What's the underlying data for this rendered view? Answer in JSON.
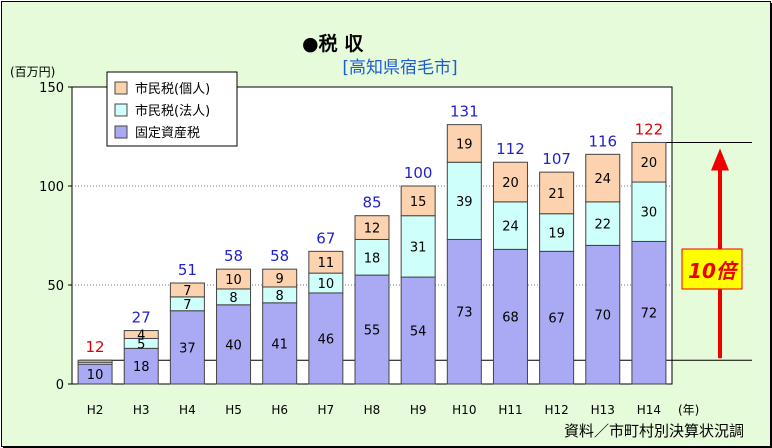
{
  "chart_data": {
    "type": "bar",
    "stacked": true,
    "title": "●税 収",
    "subtitle": "[高知県宿毛市]",
    "ylabel": "(百万円)",
    "xlabel": "(年)",
    "source": "資料／市町村別決算状況調",
    "ylim": [
      0,
      150
    ],
    "yticks": [
      0,
      50,
      100,
      150
    ],
    "grid": true,
    "legend_position": "top-left",
    "categories": [
      "H2",
      "H3",
      "H4",
      "H5",
      "H6",
      "H7",
      "H8",
      "H9",
      "H10",
      "H11",
      "H12",
      "H13",
      "H14"
    ],
    "series": [
      {
        "name": "固定資産税",
        "values": [
          10,
          18,
          37,
          40,
          41,
          46,
          55,
          54,
          73,
          68,
          67,
          70,
          72
        ],
        "color": "#aaaaf4"
      },
      {
        "name": "市民税(法人)",
        "values": [
          1,
          5,
          7,
          8,
          8,
          10,
          18,
          31,
          39,
          24,
          19,
          22,
          30
        ],
        "color": "#cffffa"
      },
      {
        "name": "市民税(個人)",
        "values": [
          1,
          4,
          7,
          10,
          9,
          11,
          12,
          15,
          19,
          20,
          21,
          24,
          20
        ],
        "color": "#fcd3ae"
      }
    ],
    "segment_labels": [
      [
        "10",
        "18",
        "37",
        "40",
        "41",
        "46",
        "55",
        "54",
        "73",
        "68",
        "67",
        "70",
        "72"
      ],
      [
        "",
        "5",
        "7",
        "8",
        "8",
        "10",
        "18",
        "31",
        "39",
        "24",
        "19",
        "22",
        "30"
      ],
      [
        "",
        "4",
        "7",
        "10",
        "9",
        "11",
        "12",
        "15",
        "19",
        "20",
        "21",
        "24",
        "20"
      ]
    ],
    "totals": [
      12,
      27,
      51,
      58,
      58,
      67,
      85,
      100,
      131,
      112,
      107,
      116,
      122
    ],
    "total_colors": [
      "#dd0000",
      "#2222cc",
      "#2222cc",
      "#2222cc",
      "#2222cc",
      "#2222cc",
      "#2222cc",
      "#2222cc",
      "#2222cc",
      "#2222cc",
      "#2222cc",
      "#2222cc",
      "#dd0000"
    ],
    "annotation": {
      "text": "10倍",
      "from": 12,
      "to": 122,
      "color": "#ee0000"
    }
  }
}
